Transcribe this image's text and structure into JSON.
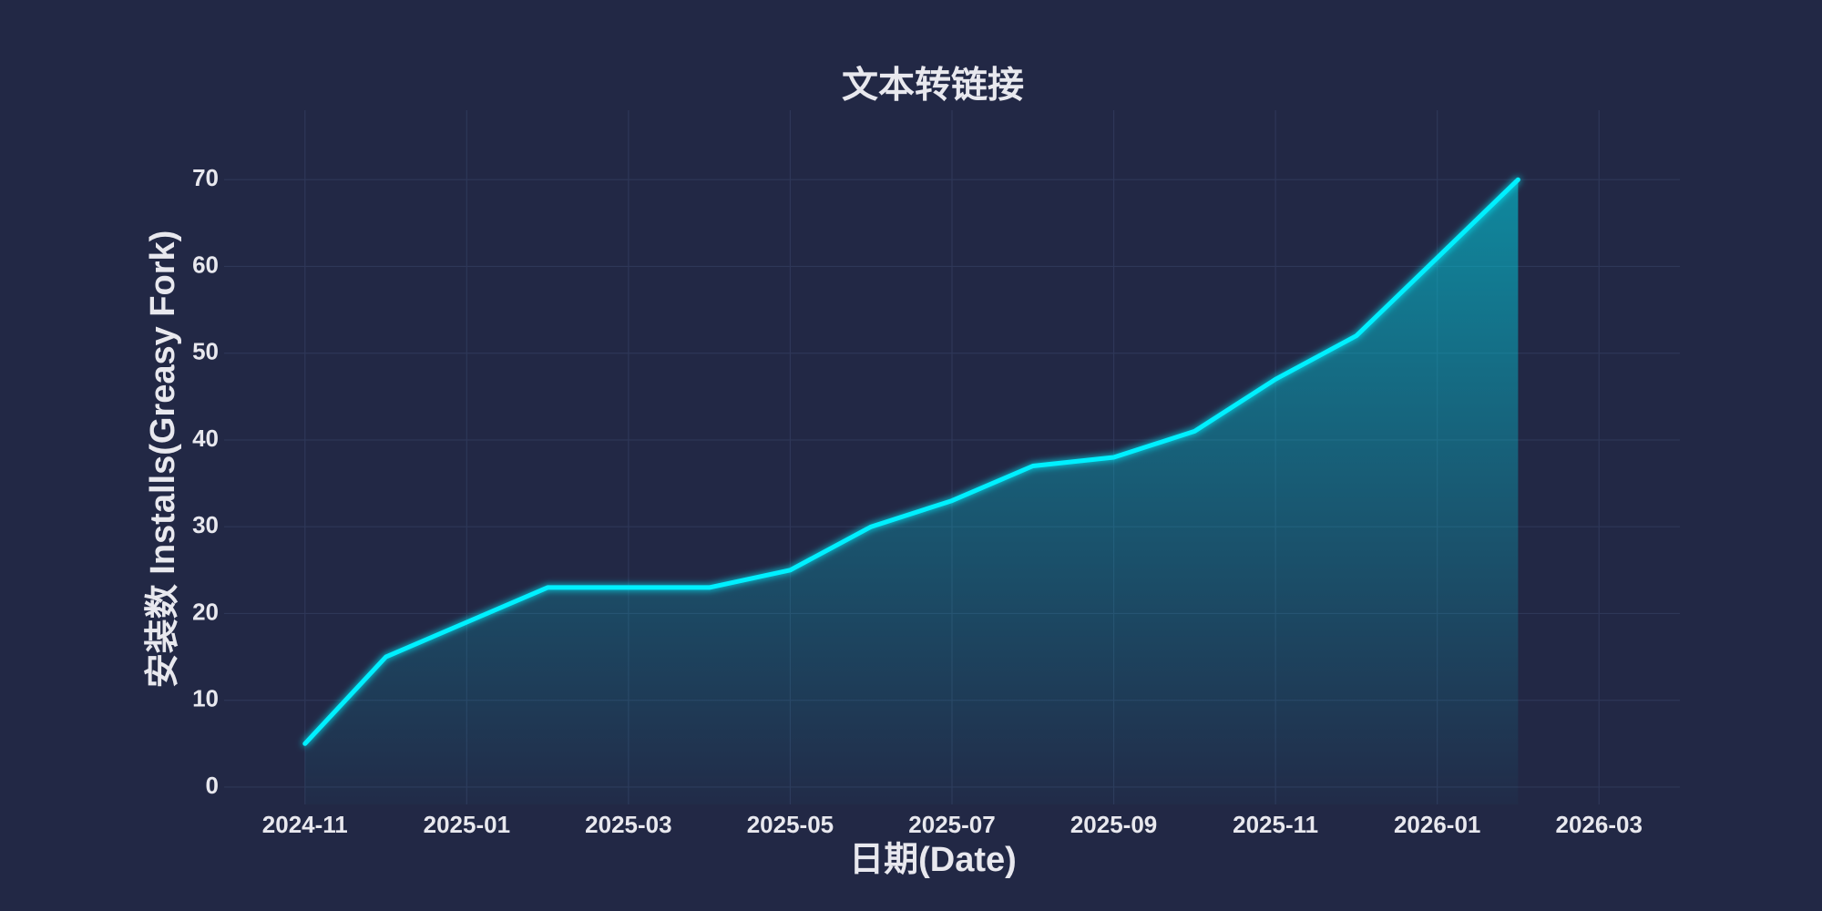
{
  "chart_data": {
    "type": "line",
    "title": "文本转链接",
    "x_label": "日期(Date)",
    "y_label": "安装数 Installs(Greasy Fork)",
    "x": [
      "2024-11",
      "2024-12",
      "2025-01",
      "2025-02",
      "2025-03",
      "2025-04",
      "2025-05",
      "2025-06",
      "2025-07",
      "2025-08",
      "2025-09",
      "2025-10",
      "2025-11",
      "2025-12",
      "2026-01",
      "2026-02"
    ],
    "values": [
      5,
      15,
      19,
      23,
      23,
      23,
      25,
      30,
      33,
      37,
      38,
      41,
      47,
      52,
      61,
      70
    ],
    "color": "#00f0ff",
    "xlim": [
      "2024-10",
      "2026-04"
    ],
    "xticks": [
      "2024-11",
      "2025-01",
      "2025-03",
      "2025-05",
      "2025-07",
      "2025-09",
      "2025-11",
      "2026-01",
      "2026-03"
    ],
    "ylim": [
      -2,
      78
    ],
    "yticks": [
      0,
      10,
      20,
      30,
      40,
      50,
      60,
      70
    ],
    "grid": true
  }
}
